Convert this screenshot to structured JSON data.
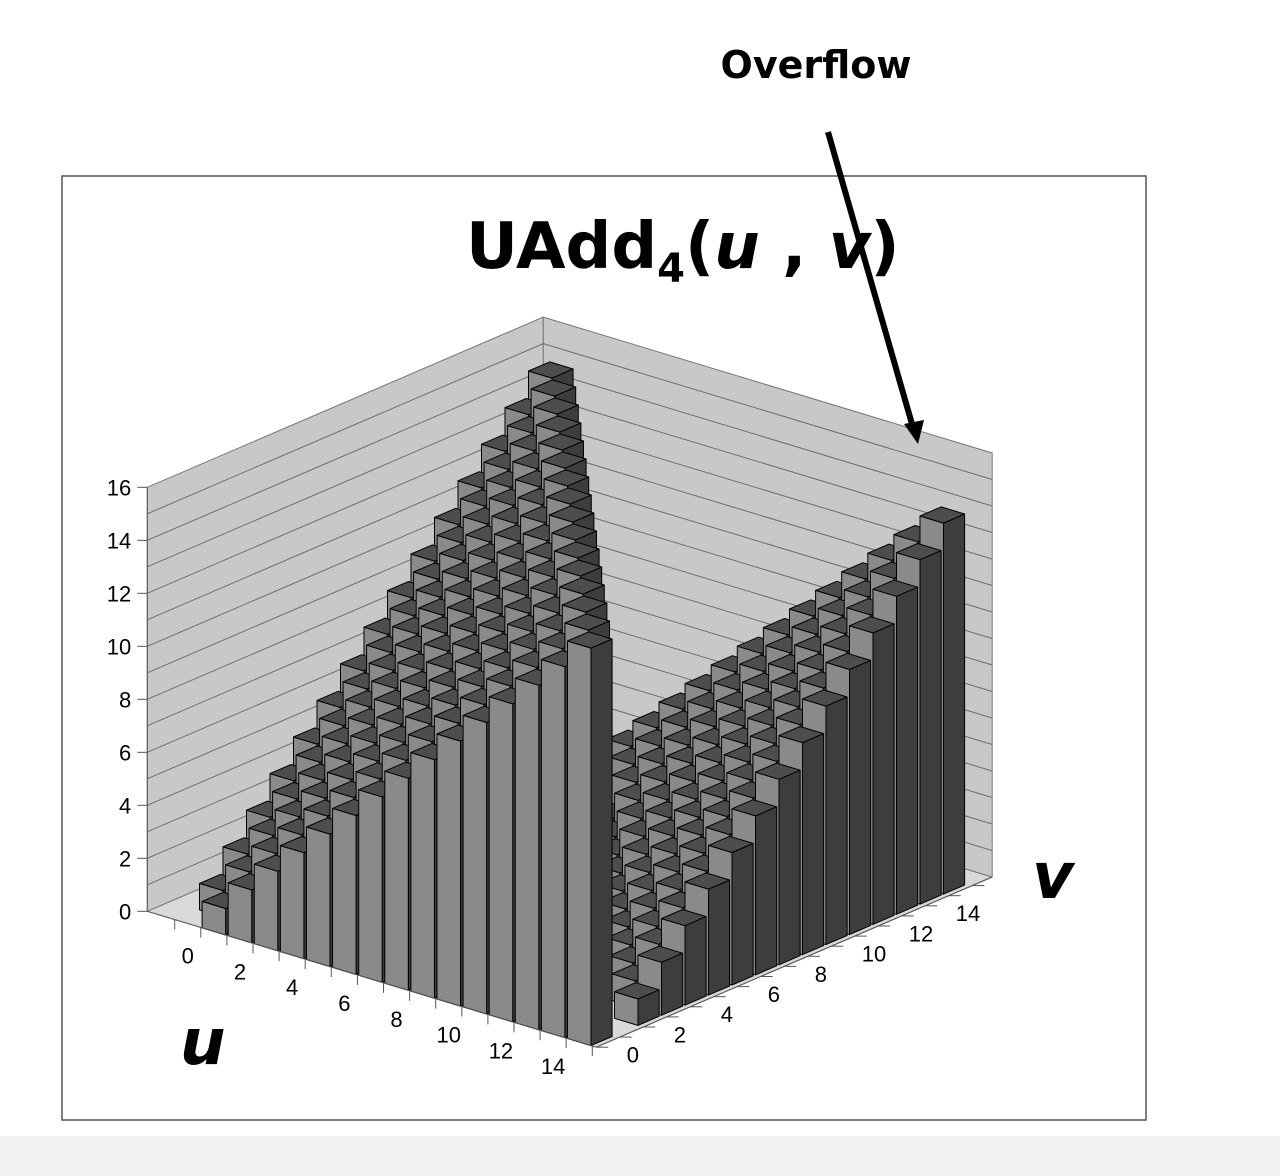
{
  "annotation": {
    "text": "Overflow"
  },
  "title": {
    "main": "UAdd",
    "subscript": "4",
    "open": "(",
    "arg1": "u",
    "sep": " , ",
    "arg2": "v",
    "close": ")"
  },
  "chart_data": {
    "type": "bar3d",
    "title": "UAdd4(u , v)",
    "xlabel": "u",
    "ylabel": "v",
    "u_values": [
      0,
      1,
      2,
      3,
      4,
      5,
      6,
      7,
      8,
      9,
      10,
      11,
      12,
      13,
      14,
      15
    ],
    "v_values": [
      0,
      1,
      2,
      3,
      4,
      5,
      6,
      7,
      8,
      9,
      10,
      11,
      12,
      13,
      14,
      15
    ],
    "formula": "(u + v) mod 16",
    "z_ticks": [
      "0",
      "2",
      "4",
      "6",
      "8",
      "10",
      "12",
      "14",
      "16"
    ],
    "u_ticks": [
      "0",
      "2",
      "4",
      "6",
      "8",
      "10",
      "12",
      "14"
    ],
    "v_ticks": [
      "0",
      "2",
      "4",
      "6",
      "8",
      "10",
      "12",
      "14"
    ],
    "zlim": [
      0,
      16
    ],
    "annotation": "Overflow",
    "colors": {
      "top": "#4d4d4d",
      "front": "#8a8a8a",
      "side": "#3d3d3d",
      "wall": "#c8c8c8",
      "floor": "#d9d9d9"
    }
  }
}
